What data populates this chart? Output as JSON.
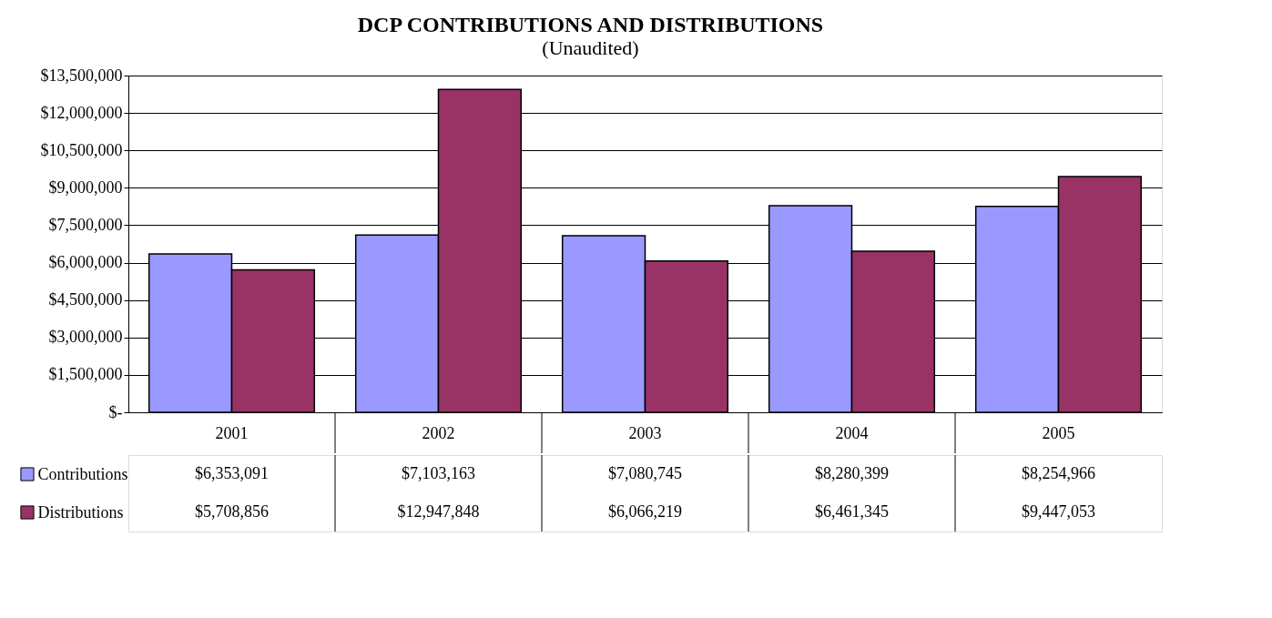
{
  "chart_data": {
    "type": "bar",
    "title": "DCP CONTRIBUTIONS AND DISTRIBUTIONS",
    "subtitle": "(Unaudited)",
    "categories": [
      "2001",
      "2002",
      "2003",
      "2004",
      "2005"
    ],
    "series": [
      {
        "name": "Contributions",
        "color": "#9999ff",
        "values": [
          6353091,
          7103163,
          7080745,
          8280399,
          8254966
        ],
        "value_labels": [
          "$6,353,091",
          "$7,103,163",
          "$7,080,745",
          "$8,280,399",
          "$8,254,966"
        ]
      },
      {
        "name": "Distributions",
        "color": "#993366",
        "values": [
          5708856,
          12947848,
          6066219,
          6461345,
          9447053
        ],
        "value_labels": [
          "$5,708,856",
          "$12,947,848",
          "$6,066,219",
          "$6,461,345",
          "$9,447,053"
        ]
      }
    ],
    "ylim": [
      0,
      13500000
    ],
    "yticks": [
      {
        "value": 0,
        "label": "$-"
      },
      {
        "value": 1500000,
        "label": "$1,500,000"
      },
      {
        "value": 3000000,
        "label": "$3,000,000"
      },
      {
        "value": 4500000,
        "label": "$4,500,000"
      },
      {
        "value": 6000000,
        "label": "$6,000,000"
      },
      {
        "value": 7500000,
        "label": "$7,500,000"
      },
      {
        "value": 9000000,
        "label": "$9,000,000"
      },
      {
        "value": 10500000,
        "label": "$10,500,000"
      },
      {
        "value": 12000000,
        "label": "$12,000,000"
      },
      {
        "value": 13500000,
        "label": "$13,500,000"
      }
    ],
    "grid": "y",
    "legend": "bottom left"
  }
}
